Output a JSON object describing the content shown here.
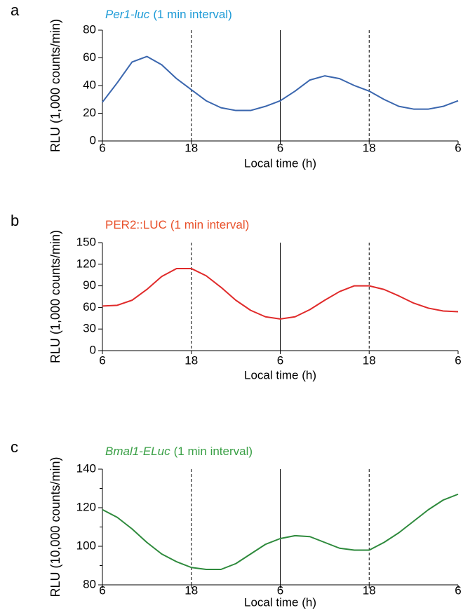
{
  "chart_data": [
    {
      "type": "line",
      "panel": "a",
      "title": [
        "Per1-luc",
        "(1 min interval)"
      ],
      "title_italic": [
        true,
        false
      ],
      "title_color": "#1e9bd7",
      "ylabel": "RLU (1,000 counts/min)",
      "ylabel_color": "#3a66ae",
      "xlabel": "Local time (h)",
      "x": [
        6,
        8,
        10,
        12,
        14,
        16,
        18,
        20,
        22,
        24,
        26,
        28,
        30,
        32,
        34,
        36,
        38,
        40,
        42,
        44,
        46,
        48,
        50,
        52,
        54
      ],
      "series": [
        {
          "color": "#3a66ae",
          "values": [
            28,
            42,
            57,
            61,
            55,
            45,
            37,
            29,
            24,
            22,
            22,
            25,
            29,
            36,
            44,
            47,
            45,
            40,
            36,
            30,
            25,
            23,
            23,
            25,
            29
          ]
        }
      ],
      "xlim": [
        6,
        54
      ],
      "xticks": [
        {
          "value": 6,
          "label": "6"
        },
        {
          "value": 18,
          "label": "18"
        },
        {
          "value": 30,
          "label": "6"
        },
        {
          "value": 42,
          "label": "18"
        },
        {
          "value": 54,
          "label": "6"
        }
      ],
      "ylim": [
        0,
        80
      ],
      "yticks": [
        0,
        20,
        40,
        60,
        80
      ],
      "yminor": [],
      "vlines": [
        {
          "x": 18,
          "style": "dashed"
        },
        {
          "x": 30,
          "style": "solid"
        },
        {
          "x": 42,
          "style": "dashed"
        }
      ]
    },
    {
      "type": "line",
      "panel": "b",
      "title": [
        "PER2::LUC",
        "(1 min interval)"
      ],
      "title_italic": [
        false,
        false
      ],
      "title_color": "#e8502a",
      "ylabel": "RLU (1,000 counts/min)",
      "ylabel_color": "#e8502a",
      "xlabel": "Local time (h)",
      "x": [
        6,
        8,
        10,
        12,
        14,
        16,
        18,
        20,
        22,
        24,
        26,
        28,
        30,
        32,
        34,
        36,
        38,
        40,
        42,
        44,
        46,
        48,
        50,
        52,
        54
      ],
      "series": [
        {
          "color": "#e02a2a",
          "values": [
            62,
            63,
            70,
            85,
            103,
            114,
            114,
            104,
            88,
            70,
            56,
            47,
            44,
            47,
            57,
            70,
            82,
            90,
            90,
            85,
            76,
            66,
            59,
            55,
            54
          ]
        }
      ],
      "xlim": [
        6,
        54
      ],
      "xticks": [
        {
          "value": 6,
          "label": "6"
        },
        {
          "value": 18,
          "label": "18"
        },
        {
          "value": 30,
          "label": "6"
        },
        {
          "value": 42,
          "label": "18"
        },
        {
          "value": 54,
          "label": "6"
        }
      ],
      "ylim": [
        0,
        150
      ],
      "yticks": [
        0,
        30,
        60,
        90,
        120,
        150
      ],
      "yminor": [],
      "vlines": [
        {
          "x": 18,
          "style": "dashed"
        },
        {
          "x": 30,
          "style": "solid"
        },
        {
          "x": 42,
          "style": "dashed"
        }
      ]
    },
    {
      "type": "line",
      "panel": "c",
      "title": [
        "Bmal1-ELuc",
        "(1 min interval)"
      ],
      "title_italic": [
        true,
        false
      ],
      "title_color": "#3aa046",
      "ylabel": "RLU (10,000 counts/min)",
      "ylabel_color": "#3aa046",
      "xlabel": "Local time (h)",
      "x": [
        6,
        8,
        10,
        12,
        14,
        16,
        18,
        20,
        22,
        24,
        26,
        28,
        30,
        32,
        34,
        36,
        38,
        40,
        42,
        44,
        46,
        48,
        50,
        52,
        54
      ],
      "series": [
        {
          "color": "#2e8a3c",
          "values": [
            119,
            115,
            109,
            102,
            96,
            92,
            89,
            88,
            88,
            91,
            96,
            101,
            104,
            105.5,
            105,
            102,
            99,
            98,
            98,
            102,
            107,
            113,
            119,
            124,
            127
          ]
        }
      ],
      "xlim": [
        6,
        54
      ],
      "xticks": [
        {
          "value": 6,
          "label": "6"
        },
        {
          "value": 18,
          "label": "18"
        },
        {
          "value": 30,
          "label": "6"
        },
        {
          "value": 42,
          "label": "18"
        },
        {
          "value": 54,
          "label": "6"
        }
      ],
      "ylim": [
        80,
        140
      ],
      "yticks": [
        80,
        100,
        120,
        140
      ],
      "yminor": [
        90,
        110,
        130
      ],
      "vlines": [
        {
          "x": 18,
          "style": "dashed"
        },
        {
          "x": 30,
          "style": "solid"
        },
        {
          "x": 42,
          "style": "dashed"
        }
      ]
    }
  ]
}
